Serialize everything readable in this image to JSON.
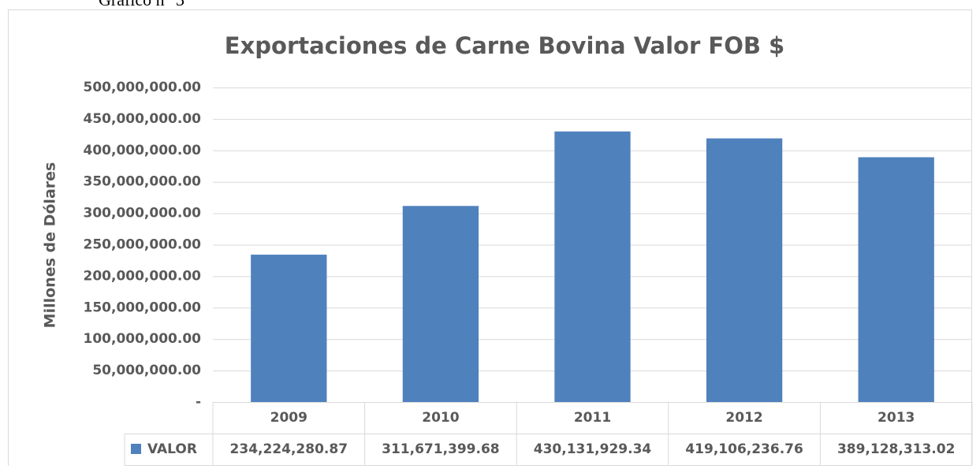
{
  "caption": "Gráfico n° 3",
  "chart_data": {
    "type": "bar",
    "title": "Exportaciones de Carne Bovina Valor FOB $",
    "y_label": "Millones de Dólares",
    "categories": [
      "2009",
      "2010",
      "2011",
      "2012",
      "2013"
    ],
    "series": [
      {
        "name": "VALOR",
        "color": "#4f81bd",
        "values": [
          234224280.87,
          311671399.68,
          430131929.34,
          419106236.76,
          389128313.02
        ],
        "value_labels": [
          "234,224,280.87",
          "311,671,399.68",
          "430,131,929.34",
          "419,106,236.76",
          "389,128,313.02"
        ]
      }
    ],
    "ylim": [
      0,
      500000000
    ],
    "yticks": [
      {
        "value": 0,
        "label": "-"
      },
      {
        "value": 50000000,
        "label": "50,000,000.00"
      },
      {
        "value": 100000000,
        "label": "100,000,000.00"
      },
      {
        "value": 150000000,
        "label": "150,000,000.00"
      },
      {
        "value": 200000000,
        "label": "200,000,000.00"
      },
      {
        "value": 250000000,
        "label": "250,000,000.00"
      },
      {
        "value": 300000000,
        "label": "300,000,000.00"
      },
      {
        "value": 350000000,
        "label": "350,000,000.00"
      },
      {
        "value": 400000000,
        "label": "400,000,000.00"
      },
      {
        "value": 450000000,
        "label": "450,000,000.00"
      },
      {
        "value": 500000000,
        "label": "500,000,000.00"
      }
    ],
    "grid": true
  }
}
